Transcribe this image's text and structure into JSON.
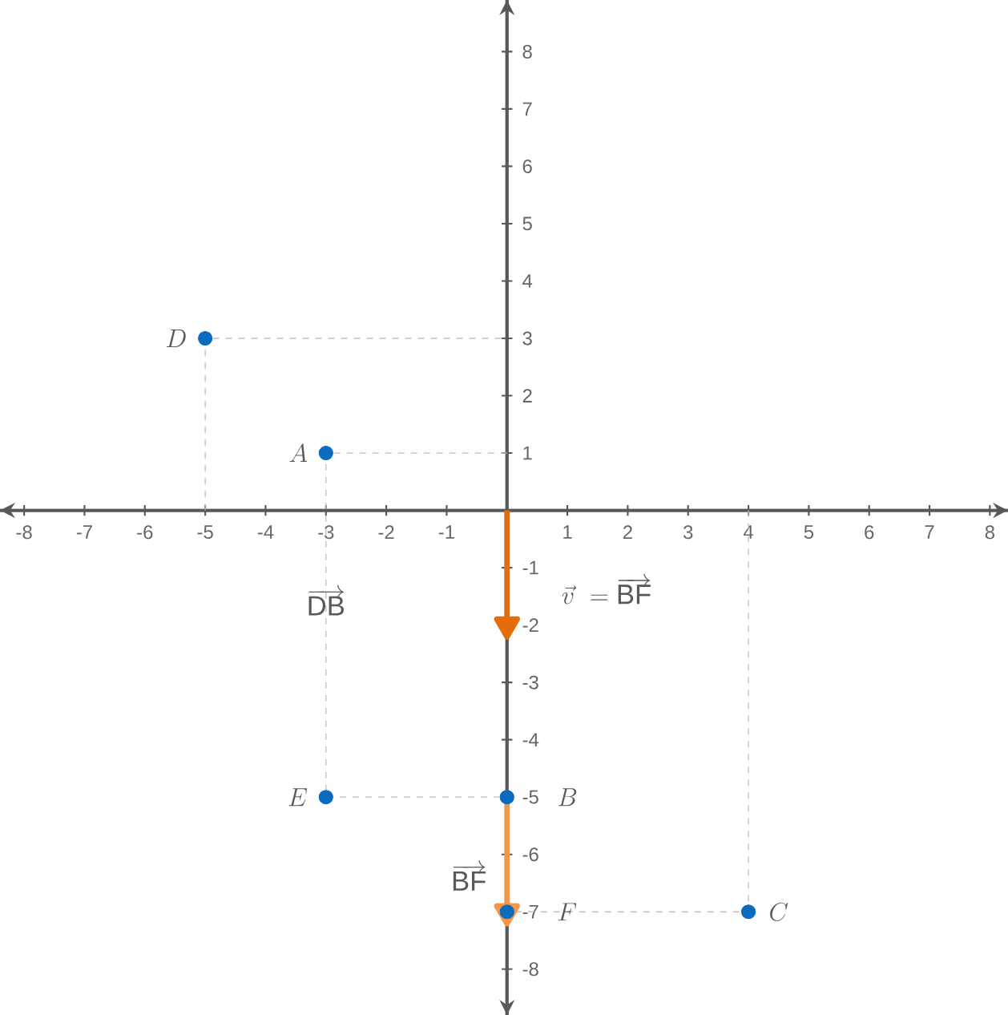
{
  "chart_data": {
    "type": "scatter",
    "xlim": [
      -8.4,
      8.3
    ],
    "ylim": [
      -8.8,
      8.9
    ],
    "xticks": [
      -8,
      -7,
      -6,
      -5,
      -4,
      -3,
      -2,
      -1,
      1,
      2,
      3,
      4,
      5,
      6,
      7,
      8
    ],
    "yticks": [
      -8,
      -7,
      -6,
      -5,
      -4,
      -3,
      -2,
      -1,
      1,
      2,
      3,
      4,
      5,
      6,
      7,
      8
    ],
    "grid": false,
    "series": [
      {
        "type": "line",
        "color": "#bfbfbf",
        "line_style": "dashed",
        "marker": "none",
        "x": [
          -5,
          -5,
          0
        ],
        "values": [
          0,
          3,
          3
        ]
      },
      {
        "type": "line",
        "color": "#bfbfbf",
        "line_style": "dashed",
        "marker": "none",
        "x": [
          0,
          -3,
          -3,
          0
        ],
        "values": [
          1,
          1,
          -5,
          -5
        ]
      },
      {
        "type": "line",
        "color": "#bfbfbf",
        "line_style": "dashed",
        "marker": "none",
        "x": [
          4,
          4,
          0
        ],
        "values": [
          0,
          -7,
          -7
        ]
      },
      {
        "type": "line",
        "color": "#e46c0a",
        "line_style": "solid",
        "marker": "triangle",
        "x": [
          0,
          0
        ],
        "values": [
          0,
          -2
        ]
      },
      {
        "type": "line",
        "color": "#f79646",
        "line_style": "solid",
        "marker": "triangle",
        "x": [
          0,
          0
        ],
        "values": [
          -5,
          -7
        ]
      },
      {
        "color": "#0b6bbf",
        "marker": "circle",
        "x": [
          -3,
          0,
          4,
          -5,
          -3,
          0
        ],
        "values": [
          1,
          -5,
          -7,
          3,
          -5,
          -7
        ]
      }
    ],
    "annotations": [
      {
        "text": "A",
        "x": -3,
        "y": 1
      },
      {
        "text": "B",
        "x": 0,
        "y": -5
      },
      {
        "text": "C",
        "x": 4,
        "y": -7
      },
      {
        "text": "D",
        "x": -5,
        "y": 3
      },
      {
        "text": "E",
        "x": -3,
        "y": -5
      },
      {
        "text": "F",
        "x": 0,
        "y": -7
      },
      {
        "text": "\\overrightarrow{\\mathrm{DB}}",
        "x": -3,
        "y": -1.6
      },
      "\\vec{v}\\ = \\overrightarrow{\\mathrm{BF}}",
      "\\overrightarrow{\\mathrm{BF}}"
    ]
  }
}
